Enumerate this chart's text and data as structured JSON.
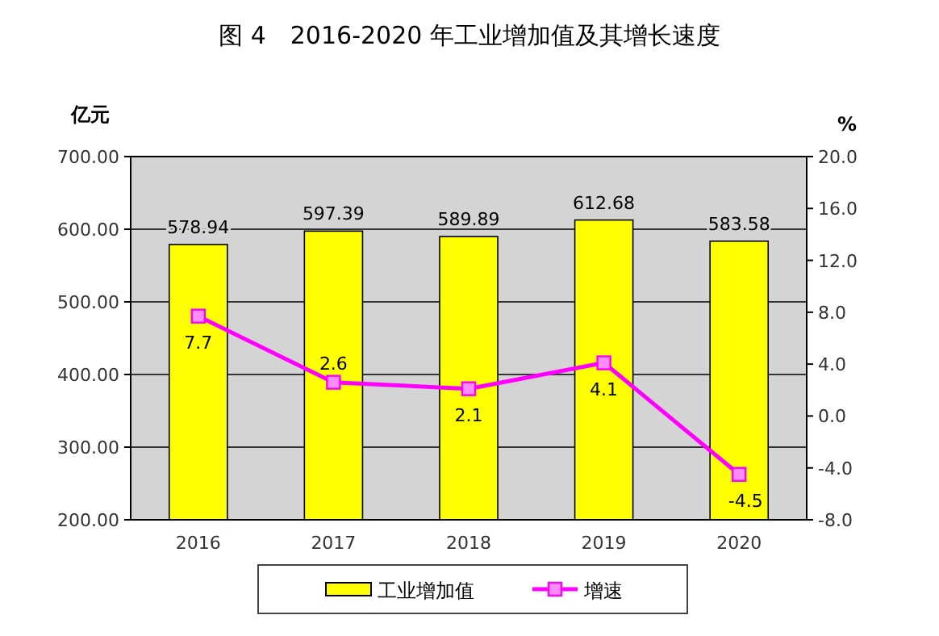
{
  "chart_data": {
    "type": "bar",
    "title": "图 4　2016-2020 年工业增加值及其增长速度",
    "ylabel": "亿元",
    "y2label": "%",
    "categories": [
      "2016",
      "2017",
      "2018",
      "2019",
      "2020"
    ],
    "series": [
      {
        "name": "工业增加值",
        "color": "#ffff00",
        "values": [
          578.94,
          597.39,
          589.89,
          612.68,
          583.58
        ]
      },
      {
        "name": "增速",
        "type": "line",
        "axis": "y2",
        "color": "#ff00ff",
        "marker": "square",
        "values": [
          7.7,
          2.6,
          2.1,
          4.1,
          -4.5
        ]
      }
    ],
    "ylim": [
      200,
      700
    ],
    "yticks": [
      {
        "value": 200,
        "label": "200.00"
      },
      {
        "value": 300,
        "label": "300.00"
      },
      {
        "value": 400,
        "label": "400.00"
      },
      {
        "value": 500,
        "label": "500.00"
      },
      {
        "value": 600,
        "label": "600.00"
      },
      {
        "value": 700,
        "label": "700.00"
      }
    ],
    "y2lim": [
      -8,
      20
    ],
    "y2ticks": [
      {
        "value": -8,
        "label": "-8.0"
      },
      {
        "value": -4,
        "label": "-4.0"
      },
      {
        "value": 0,
        "label": "0.0"
      },
      {
        "value": 4,
        "label": "4.0"
      },
      {
        "value": 8,
        "label": "8.0"
      },
      {
        "value": 12,
        "label": "12.0"
      },
      {
        "value": 16,
        "label": "16.0"
      },
      {
        "value": 20,
        "label": "20.0"
      }
    ],
    "grid": "y",
    "legend": "bottom",
    "data_labels": true
  }
}
